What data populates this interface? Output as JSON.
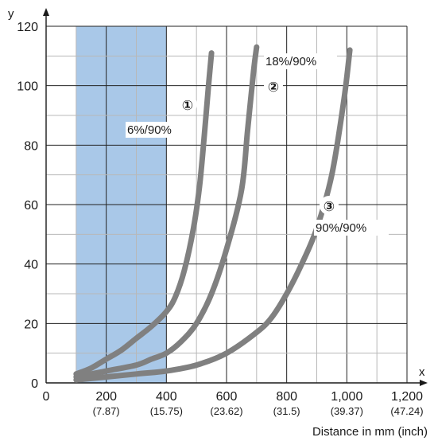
{
  "chart_data": {
    "type": "line",
    "title": "",
    "xlabel": "Distance in mm (inch)",
    "ylabel": "",
    "x_axis_letter": "x",
    "y_axis_letter": "y",
    "xlim": [
      0,
      1200
    ],
    "ylim": [
      0,
      120
    ],
    "grid": true,
    "legend": "none",
    "x_ticks": [
      {
        "value": 0,
        "label": "0",
        "sub": ""
      },
      {
        "value": 200,
        "label": "200",
        "sub": "(7.87)"
      },
      {
        "value": 400,
        "label": "400",
        "sub": "(15.75)"
      },
      {
        "value": 600,
        "label": "600",
        "sub": "(23.62)"
      },
      {
        "value": 800,
        "label": "800",
        "sub": "(31.5)"
      },
      {
        "value": 1000,
        "label": "1,000",
        "sub": "(39.37)"
      },
      {
        "value": 1200,
        "label": "1,200",
        "sub": "(47.24)"
      }
    ],
    "y_ticks": [
      {
        "value": 0,
        "label": "0"
      },
      {
        "value": 20,
        "label": "20"
      },
      {
        "value": 40,
        "label": "40"
      },
      {
        "value": 60,
        "label": "60"
      },
      {
        "value": 80,
        "label": "80"
      },
      {
        "value": 100,
        "label": "100"
      },
      {
        "value": 120,
        "label": "120"
      }
    ],
    "shaded_region": {
      "x_from": 100,
      "x_to": 400,
      "color": "#a9c8e8"
    },
    "series": [
      {
        "marker": "①",
        "label": "6%/90%",
        "color": "#808080",
        "points": [
          [
            100,
            3
          ],
          [
            150,
            5
          ],
          [
            200,
            8
          ],
          [
            250,
            11
          ],
          [
            300,
            15
          ],
          [
            350,
            19
          ],
          [
            400,
            24
          ],
          [
            430,
            29
          ],
          [
            460,
            38
          ],
          [
            490,
            52
          ],
          [
            510,
            66
          ],
          [
            525,
            82
          ],
          [
            540,
            100
          ],
          [
            550,
            111
          ]
        ]
      },
      {
        "marker": "②",
        "label": "18%/90%",
        "color": "#808080",
        "points": [
          [
            100,
            2
          ],
          [
            200,
            4
          ],
          [
            300,
            6
          ],
          [
            350,
            8
          ],
          [
            400,
            10
          ],
          [
            450,
            14
          ],
          [
            500,
            20
          ],
          [
            550,
            30
          ],
          [
            600,
            45
          ],
          [
            650,
            65
          ],
          [
            670,
            85
          ],
          [
            690,
            105
          ],
          [
            700,
            113
          ]
        ]
      },
      {
        "marker": "③",
        "label": "90%/90%",
        "color": "#808080",
        "points": [
          [
            100,
            1
          ],
          [
            300,
            3
          ],
          [
            400,
            4
          ],
          [
            500,
            6
          ],
          [
            600,
            10
          ],
          [
            700,
            17
          ],
          [
            750,
            22
          ],
          [
            800,
            30
          ],
          [
            850,
            40
          ],
          [
            900,
            52
          ],
          [
            950,
            70
          ],
          [
            990,
            95
          ],
          [
            1010,
            112
          ]
        ]
      }
    ]
  }
}
